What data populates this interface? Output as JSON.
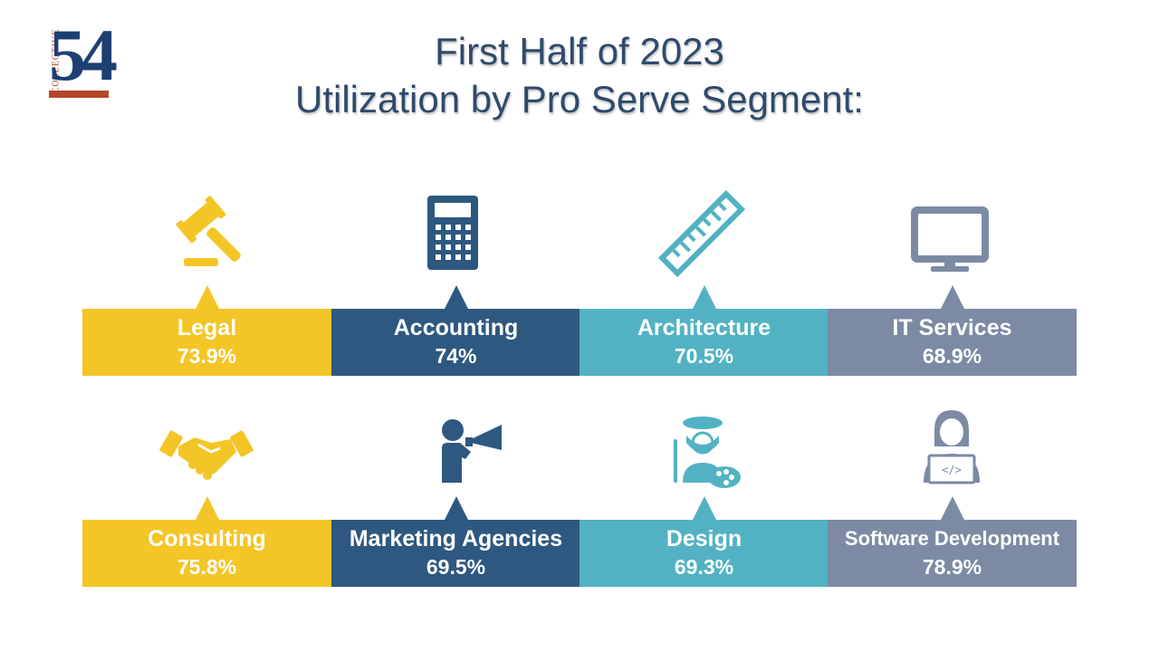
{
  "logo": {
    "small_text": "COLLECTIVE",
    "number": "54"
  },
  "title": {
    "line1": "First Half of 2023",
    "line2": "Utilization by Pro Serve Segment:"
  },
  "colors": {
    "yellow": "#f4c526",
    "navy": "#2e5880",
    "teal": "#52b2c3",
    "slate": "#7c8aa4"
  },
  "segments": [
    {
      "name": "Legal",
      "value": "73.9%",
      "icon": "gavel-icon"
    },
    {
      "name": "Accounting",
      "value": "74%",
      "icon": "calculator-icon"
    },
    {
      "name": "Architecture",
      "value": "70.5%",
      "icon": "ruler-icon"
    },
    {
      "name": "IT Services",
      "value": "68.9%",
      "icon": "monitor-icon"
    },
    {
      "name": "Consulting",
      "value": "75.8%",
      "icon": "handshake-icon"
    },
    {
      "name": "Marketing Agencies",
      "value": "69.5%",
      "icon": "megaphone-icon"
    },
    {
      "name": "Design",
      "value": "69.3%",
      "icon": "artist-palette-icon"
    },
    {
      "name": "Software Development",
      "value": "78.9%",
      "icon": "developer-laptop-icon"
    }
  ]
}
